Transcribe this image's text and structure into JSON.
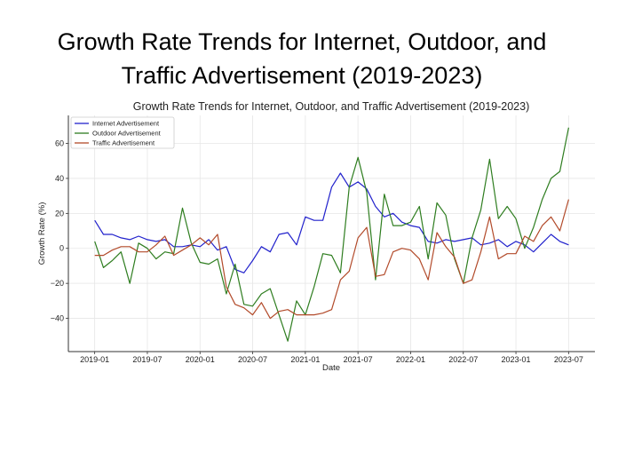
{
  "slide": {
    "title_line1": "Growth Rate Trends for Internet, Outdoor, and",
    "title_line2": "Traffic Advertisement (2019-2023)"
  },
  "chart_data": {
    "type": "line",
    "title": "Growth Rate Trends for Internet, Outdoor, and Traffic Advertisement (2019-2023)",
    "xlabel": "Date",
    "ylabel": "Growth Rate (%)",
    "x_tick_labels": [
      "2019-01",
      "2019-07",
      "2020-01",
      "2020-07",
      "2021-01",
      "2021-07",
      "2022-01",
      "2022-07",
      "2023-01",
      "2023-07"
    ],
    "y_ticks": [
      -40,
      -20,
      0,
      20,
      40,
      60
    ],
    "ylim": [
      -59,
      76
    ],
    "xlim_months": [
      -3,
      57
    ],
    "grid": true,
    "legend_position": "top-left",
    "x_start": "2019-01",
    "series": [
      {
        "name": "Internet Advertisement",
        "color": "#2222cc",
        "values": [
          16,
          8,
          8,
          6,
          5,
          7,
          5,
          4,
          5,
          1,
          1,
          2,
          1,
          5,
          -1,
          1,
          -12,
          -14,
          -7,
          1,
          -2,
          8,
          9,
          2,
          18,
          16,
          16,
          35,
          43,
          35,
          38,
          34,
          24,
          18,
          20,
          15,
          13,
          12,
          4,
          3,
          5,
          4,
          5,
          6,
          2,
          3,
          5,
          1,
          4,
          2,
          -2,
          3,
          8,
          4,
          2
        ]
      },
      {
        "name": "Outdoor Advertisement",
        "color": "#2e7d1f",
        "values": [
          4,
          -11,
          -7,
          -2,
          -20,
          3,
          0,
          -6,
          -2,
          -3,
          23,
          3,
          -8,
          -9,
          -6,
          -26,
          -9,
          -32,
          -33,
          -26,
          -23,
          -38,
          -53,
          -30,
          -38,
          -22,
          -3,
          -4,
          -14,
          35,
          52,
          32,
          -18,
          31,
          13,
          13,
          15,
          24,
          -6,
          26,
          19,
          -6,
          -20,
          6,
          22,
          51,
          17,
          24,
          17,
          0,
          12,
          28,
          40,
          44,
          69
        ]
      },
      {
        "name": "Traffic Advertisement",
        "color": "#b24a2a",
        "values": [
          -4,
          -4,
          -1,
          1,
          1,
          -2,
          -2,
          2,
          7,
          -4,
          -1,
          2,
          6,
          2,
          8,
          -22,
          -32,
          -34,
          -38,
          -31,
          -40,
          -36,
          -35,
          -38,
          -38,
          -38,
          -37,
          -35,
          -18,
          -13,
          6,
          12,
          -16,
          -15,
          -2,
          0,
          -1,
          -6,
          -18,
          9,
          1,
          -5,
          -20,
          -18,
          -2,
          18,
          -6,
          -3,
          -3,
          7,
          4,
          13,
          18,
          10,
          28
        ]
      }
    ]
  }
}
